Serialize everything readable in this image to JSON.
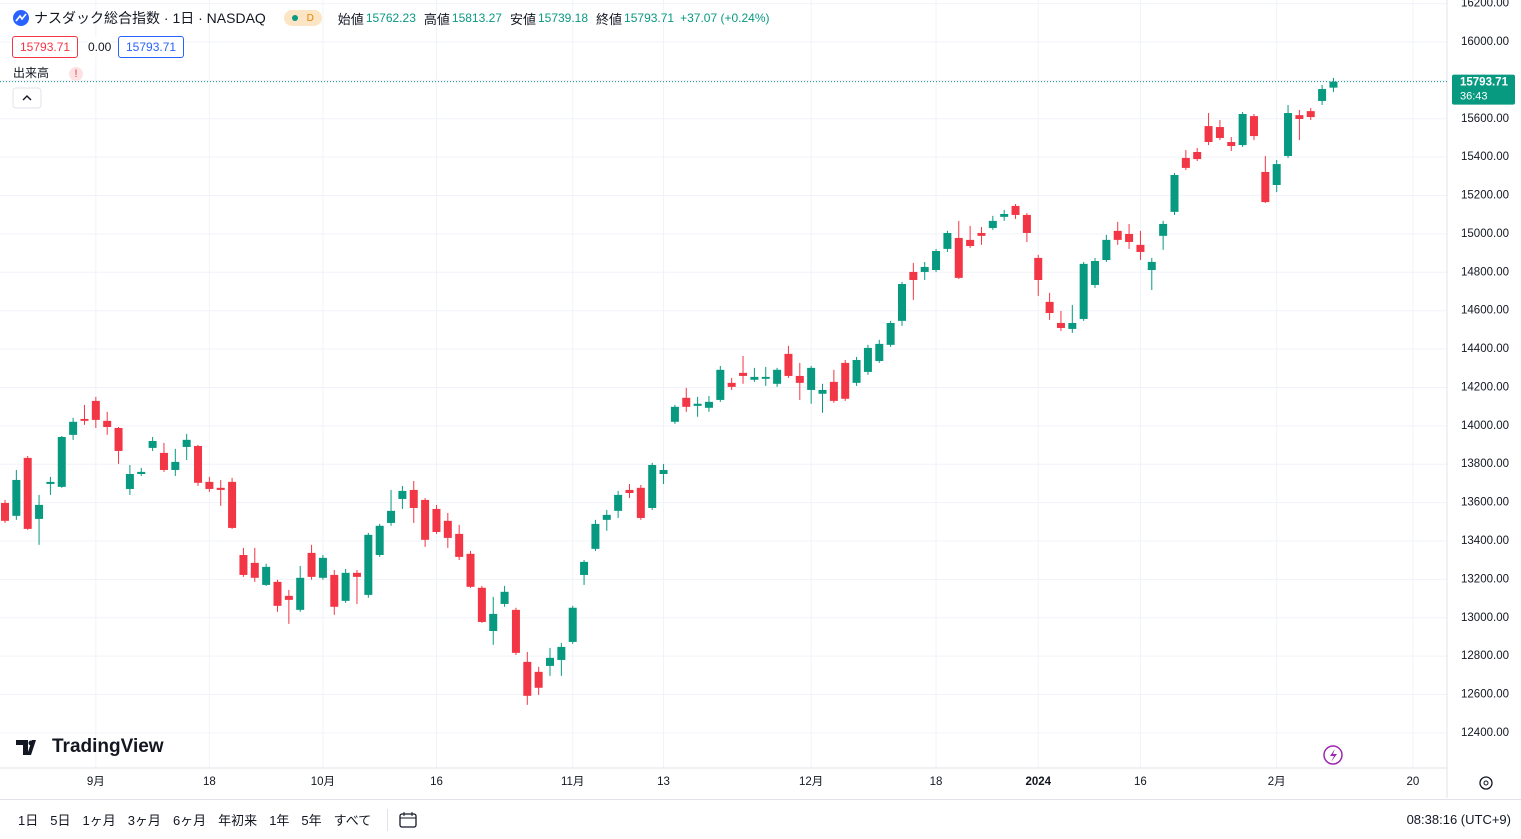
{
  "chart_data": {
    "type": "candlestick",
    "title": "ナスダック総合指数 · 1日 · NASDAQ",
    "interval_badge": "D",
    "ohlc_labels": [
      "始値",
      "高値",
      "安値",
      "終値"
    ],
    "change_label": "+37.07 (+0.24%)",
    "spread": "0.00",
    "volume_label": "出来高",
    "warning": "!",
    "countdown": "36:43",
    "logo": "TradingView",
    "up_color": "#089981",
    "down_color": "#f23645",
    "open": [
      13598,
      13531,
      13833,
      13515,
      13697,
      13682,
      13953,
      14036,
      14130,
      14026,
      13989,
      13671,
      13749,
      13885,
      13859,
      13770,
      13890,
      13895,
      13708,
      13677,
      13708,
      13327,
      13286,
      13171,
      13187,
      13114,
      13041,
      13338,
      13208,
      13223,
      13088,
      13234,
      13119,
      13327,
      13494,
      13619,
      13666,
      13614,
      13567,
      13505,
      13437,
      13333,
      13156,
      12931,
      13072,
      13041,
      12770,
      12718,
      12749,
      12780,
      12874,
      13223,
      13359,
      13510,
      13557,
      13666,
      13677,
      13572,
      13749,
      14021,
      14146,
      14104,
      14094,
      14135,
      14224,
      14276,
      14240,
      14245,
      14219,
      14375,
      14260,
      14187,
      14167,
      14229,
      14328,
      14224,
      14281,
      14338,
      14422,
      14547,
      14802,
      14802,
      14812,
      14922,
      14979,
      14969,
      15005,
      15031,
      15089,
      15146,
      15099,
      14875,
      14646,
      14536,
      14505,
      14557,
      14734,
      14864,
      15016,
      15000,
      14943,
      14812,
      14990,
      15115,
      15396,
      15427,
      15562,
      15557,
      15479,
      15463,
      15614,
      15323,
      15255,
      15406,
      15619,
      15640,
      15693,
      15762.23
    ],
    "high": [
      13614,
      13770,
      13843,
      13640,
      13734,
      13947,
      14042,
      14109,
      14151,
      14073,
      13994,
      13796,
      13781,
      13942,
      13911,
      13880,
      13958,
      13901,
      13734,
      13718,
      13729,
      13364,
      13364,
      13281,
      13198,
      13145,
      13270,
      13380,
      13327,
      13249,
      13254,
      13249,
      13442,
      13489,
      13666,
      13687,
      13713,
      13624,
      13588,
      13546,
      13484,
      13348,
      13166,
      13109,
      13166,
      13052,
      12822,
      12744,
      12843,
      12869,
      13062,
      13301,
      13510,
      13562,
      13661,
      13697,
      13692,
      13807,
      13801,
      14109,
      14198,
      14151,
      14156,
      14312,
      14250,
      14364,
      14302,
      14307,
      14302,
      14417,
      14328,
      14312,
      14219,
      14292,
      14343,
      14359,
      14422,
      14448,
      14547,
      14750,
      14849,
      14854,
      14922,
      15016,
      15068,
      15042,
      15036,
      15094,
      15125,
      15156,
      15109,
      14891,
      14693,
      14599,
      14630,
      14854,
      14875,
      14995,
      15063,
      15052,
      15016,
      14875,
      15068,
      15318,
      15437,
      15448,
      15630,
      15594,
      15505,
      15635,
      15625,
      15406,
      15385,
      15672,
      15646,
      15656,
      15776,
      15813.27
    ],
    "low": [
      13494,
      13510,
      13458,
      13380,
      13640,
      13677,
      13927,
      14005,
      13989,
      13953,
      13802,
      13640,
      13739,
      13869,
      13760,
      13739,
      13822,
      13687,
      13656,
      13583,
      13463,
      13213,
      13187,
      13166,
      13031,
      12968,
      13031,
      13198,
      13198,
      13015,
      13078,
      13072,
      13104,
      13317,
      13479,
      13567,
      13494,
      13369,
      13437,
      13364,
      13301,
      13156,
      12973,
      12859,
      13057,
      12806,
      12546,
      12598,
      12697,
      12697,
      12864,
      13171,
      13348,
      13453,
      13520,
      13624,
      13510,
      13562,
      13697,
      14010,
      14073,
      14047,
      14073,
      14125,
      14187,
      14219,
      14229,
      14208,
      14203,
      14250,
      14135,
      14115,
      14068,
      14120,
      14130,
      14208,
      14266,
      14328,
      14411,
      14521,
      14656,
      14760,
      14802,
      14906,
      14765,
      14927,
      14943,
      15021,
      15068,
      15078,
      14958,
      14677,
      14552,
      14494,
      14484,
      14547,
      14719,
      14854,
      14943,
      14922,
      14864,
      14708,
      14917,
      15099,
      15333,
      15380,
      15463,
      15489,
      15432,
      15453,
      15489,
      15161,
      15218,
      15396,
      15489,
      15594,
      15672,
      15739.18
    ],
    "close": [
      13505,
      13718,
      13463,
      13588,
      13708,
      13942,
      14021,
      14026,
      14031,
      13994,
      13869,
      13749,
      13760,
      13921,
      13770,
      13812,
      13927,
      13703,
      13671,
      13666,
      13468,
      13223,
      13208,
      13265,
      13062,
      13093,
      13208,
      13213,
      13312,
      13057,
      13234,
      13213,
      13432,
      13479,
      13557,
      13661,
      13572,
      13406,
      13447,
      13416,
      13317,
      13161,
      12978,
      13020,
      13135,
      12817,
      12593,
      12635,
      12791,
      12848,
      13052,
      13291,
      13489,
      13536,
      13640,
      13650,
      13520,
      13796,
      13770,
      14099,
      14099,
      14115,
      14125,
      14292,
      14203,
      14260,
      14255,
      14255,
      14292,
      14260,
      14224,
      14302,
      14187,
      14130,
      14141,
      14343,
      14406,
      14427,
      14536,
      14739,
      14760,
      14828,
      14911,
      15005,
      14771,
      14937,
      14990,
      15068,
      15104,
      15099,
      15005,
      14760,
      14588,
      14510,
      14536,
      14844,
      14859,
      14969,
      14969,
      14958,
      14906,
      14854,
      15052,
      15307,
      15344,
      15390,
      15479,
      15500,
      15458,
      15625,
      15510,
      15166,
      15364,
      15630,
      15599,
      15609,
      15755,
      15793.71
    ],
    "xlim": [
      -0.44,
      127
    ],
    "xticks": [
      {
        "value": 8,
        "label": "9月"
      },
      {
        "value": 18,
        "label": "18"
      },
      {
        "value": 28,
        "label": "10月"
      },
      {
        "value": 38,
        "label": "16"
      },
      {
        "value": 50,
        "label": "11月"
      },
      {
        "value": 58,
        "label": "13"
      },
      {
        "value": 71,
        "label": "12月"
      },
      {
        "value": 82,
        "label": "18"
      },
      {
        "value": 91,
        "label": "2024"
      },
      {
        "value": 100,
        "label": "16"
      },
      {
        "value": 112,
        "label": "2月"
      },
      {
        "value": 124,
        "label": "20"
      }
    ],
    "ylim": [
      12217,
      16219
    ],
    "yticks": [
      {
        "value": 12400,
        "label": "12400.00"
      },
      {
        "value": 12600,
        "label": "12600.00"
      },
      {
        "value": 12800,
        "label": "12800.00"
      },
      {
        "value": 13000,
        "label": "13000.00"
      },
      {
        "value": 13200,
        "label": "13200.00"
      },
      {
        "value": 13400,
        "label": "13400.00"
      },
      {
        "value": 13600,
        "label": "13600.00"
      },
      {
        "value": 13800,
        "label": "13800.00"
      },
      {
        "value": 14000,
        "label": "14000.00"
      },
      {
        "value": 14200,
        "label": "14200.00"
      },
      {
        "value": 14400,
        "label": "14400.00"
      },
      {
        "value": 14600,
        "label": "14600.00"
      },
      {
        "value": 14800,
        "label": "14800.00"
      },
      {
        "value": 15000,
        "label": "15000.00"
      },
      {
        "value": 15200,
        "label": "15200.00"
      },
      {
        "value": 15400,
        "label": "15400.00"
      },
      {
        "value": 15600,
        "label": "15600.00"
      },
      {
        "value": 15800,
        "label": "15800.00"
      },
      {
        "value": 16000,
        "label": "16000.00"
      },
      {
        "value": 16200,
        "label": "16200.00"
      }
    ],
    "grid": true
  },
  "toolbar": {
    "ranges": [
      "1日",
      "5日",
      "1ヶ月",
      "3ヶ月",
      "6ヶ月",
      "年初来",
      "1年",
      "5年",
      "すべて"
    ],
    "clock": "08:38:16 (UTC+9)"
  }
}
